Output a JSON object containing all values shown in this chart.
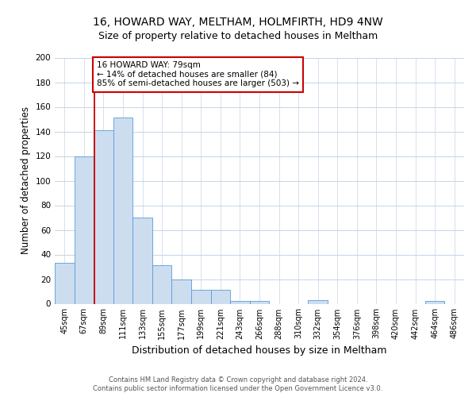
{
  "title_line1": "16, HOWARD WAY, MELTHAM, HOLMFIRTH, HD9 4NW",
  "title_line2": "Size of property relative to detached houses in Meltham",
  "xlabel": "Distribution of detached houses by size in Meltham",
  "ylabel": "Number of detached properties",
  "bar_labels": [
    "45sqm",
    "67sqm",
    "89sqm",
    "111sqm",
    "133sqm",
    "155sqm",
    "177sqm",
    "199sqm",
    "221sqm",
    "243sqm",
    "266sqm",
    "288sqm",
    "310sqm",
    "332sqm",
    "354sqm",
    "376sqm",
    "398sqm",
    "420sqm",
    "442sqm",
    "464sqm",
    "486sqm"
  ],
  "bar_values": [
    33,
    120,
    141,
    151,
    70,
    31,
    20,
    11,
    11,
    2,
    2,
    0,
    0,
    3,
    0,
    0,
    0,
    0,
    0,
    2,
    0
  ],
  "bar_color": "#ccddf0",
  "bar_edgecolor": "#5b9bd5",
  "vline_color": "#cc0000",
  "annotation_text": "16 HOWARD WAY: 79sqm\n← 14% of detached houses are smaller (84)\n85% of semi-detached houses are larger (503) →",
  "annotation_box_edgecolor": "#cc0000",
  "annotation_box_facecolor": "#ffffff",
  "ylim": [
    0,
    200
  ],
  "yticks": [
    0,
    20,
    40,
    60,
    80,
    100,
    120,
    140,
    160,
    180,
    200
  ],
  "grid_color": "#c5d5e8",
  "footer_text": "Contains HM Land Registry data © Crown copyright and database right 2024.\nContains public sector information licensed under the Open Government Licence v3.0.",
  "title1_fontsize": 10,
  "title2_fontsize": 9,
  "xlabel_fontsize": 9,
  "ylabel_fontsize": 8.5,
  "annot_fontsize": 7.5,
  "footer_fontsize": 6,
  "tick_fontsize": 7,
  "ytick_fontsize": 7.5
}
